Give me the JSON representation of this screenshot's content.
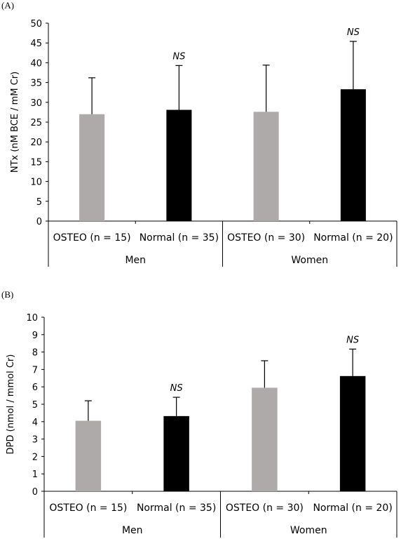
{
  "chart_data": [
    {
      "type": "bar",
      "panel_label": "(A)",
      "ylabel": "NTx  (nM BCE / mM Cr)",
      "ylim": [
        0,
        50
      ],
      "yticks": [
        0,
        5,
        10,
        15,
        20,
        25,
        30,
        35,
        40,
        45,
        50
      ],
      "categories": [
        "OSTEO (n = 15)",
        "Normal (n = 35)",
        "OSTEO (n = 30)",
        "Normal (n = 20)"
      ],
      "groups": [
        "Men",
        "Women"
      ],
      "values": [
        27.0,
        28.1,
        27.6,
        33.3
      ],
      "errors": [
        9.2,
        11.2,
        11.8,
        12.1
      ],
      "bar_colors": [
        "#aeaaaa",
        "#000000",
        "#aeaaaa",
        "#000000"
      ],
      "annotations": [
        "",
        "NS",
        "",
        "NS"
      ]
    },
    {
      "type": "bar",
      "panel_label": "(B)",
      "ylabel": "DPD (nmol / mmol Cr)",
      "ylim": [
        0,
        10
      ],
      "yticks": [
        0,
        1,
        2,
        3,
        4,
        5,
        6,
        7,
        8,
        9,
        10
      ],
      "categories": [
        "OSTEO (n = 15)",
        "Normal (n = 35)",
        "OSTEO (n = 30)",
        "Normal (n = 20)"
      ],
      "groups": [
        "Men",
        "Women"
      ],
      "values": [
        4.05,
        4.32,
        5.95,
        6.62
      ],
      "errors": [
        1.15,
        1.08,
        1.55,
        1.55
      ],
      "bar_colors": [
        "#aeaaaa",
        "#000000",
        "#aeaaaa",
        "#000000"
      ],
      "annotations": [
        "",
        "NS",
        "",
        "NS"
      ]
    }
  ]
}
